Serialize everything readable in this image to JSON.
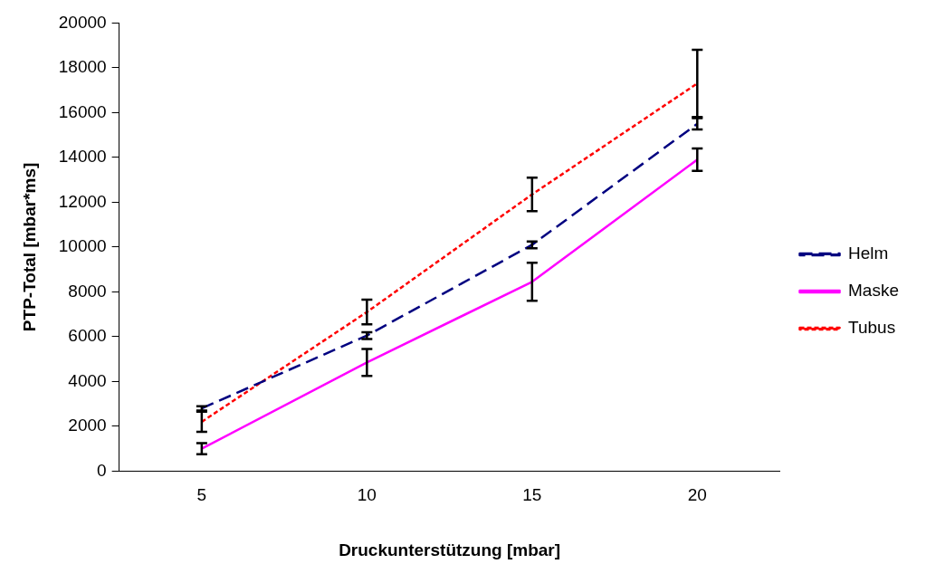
{
  "chart_data": {
    "type": "line",
    "xlabel": "Druckunterstützung [mbar]",
    "ylabel": "PTP-Total [mbar*ms]",
    "categories": [
      "5",
      "10",
      "15",
      "20"
    ],
    "ylim": [
      0,
      20000
    ],
    "yticks": [
      0,
      2000,
      4000,
      6000,
      8000,
      10000,
      12000,
      14000,
      16000,
      18000,
      20000
    ],
    "grid": false,
    "legend": "right",
    "series": [
      {
        "name": "Helm",
        "color": "#000080",
        "line_style": "dashed",
        "values": [
          2800,
          6050,
          10100,
          15500
        ],
        "errors": [
          100,
          150,
          150,
          250
        ]
      },
      {
        "name": "Maske",
        "color": "#ff00ff",
        "line_style": "solid",
        "values": [
          1000,
          4850,
          8450,
          13900
        ],
        "errors": [
          250,
          600,
          850,
          500
        ]
      },
      {
        "name": "Tubus",
        "color": "#ff0000",
        "line_style": "dotted",
        "values": [
          2200,
          7100,
          12350,
          17300
        ],
        "errors": [
          450,
          550,
          750,
          1500
        ]
      }
    ]
  }
}
